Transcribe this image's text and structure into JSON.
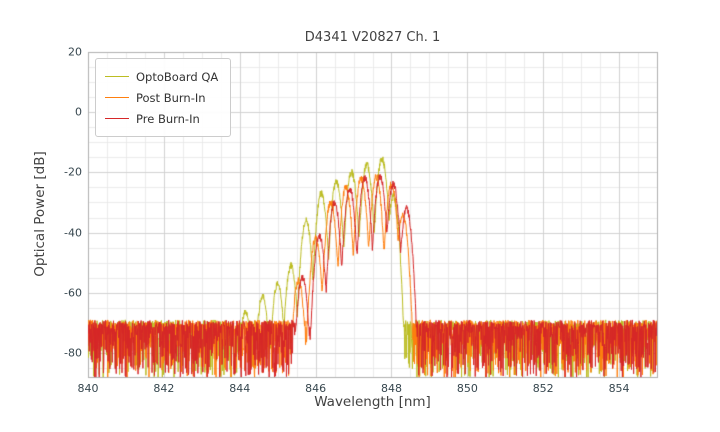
{
  "title": "D4341 V20827 Ch. 1",
  "chart_data": {
    "type": "line",
    "title": "D4341 V20827 Ch. 1",
    "xlabel": "Wavelength [nm]",
    "ylabel": "Optical Power [dB]",
    "xlim": [
      840,
      855
    ],
    "ylim": [
      -88,
      20
    ],
    "xticks": [
      840,
      842,
      844,
      846,
      848,
      850,
      852,
      854
    ],
    "yticks": [
      20,
      0,
      -20,
      -40,
      -60,
      -80
    ],
    "x_minor_step": 0.5,
    "y_minor_step": 5,
    "grid": true,
    "legend_position": "upper-left",
    "series": [
      {
        "name": "OptoBoard QA",
        "color": "#bcbd22",
        "seed": 11,
        "noise_floor": {
          "top": -69,
          "jitter": 2.5,
          "spike": 18
        },
        "signal": {
          "start": 844.1,
          "end": 848.25,
          "mode_halfwidth": 0.2,
          "valley_depth": 24,
          "signal_noise": 2.4,
          "modes": [
            [
              844.15,
              -66
            ],
            [
              844.6,
              -61
            ],
            [
              845.0,
              -57
            ],
            [
              845.35,
              -51
            ],
            [
              845.75,
              -36
            ],
            [
              846.15,
              -27
            ],
            [
              846.55,
              -23
            ],
            [
              846.95,
              -20
            ],
            [
              847.35,
              -17.5
            ],
            [
              847.75,
              -15.5
            ],
            [
              848.05,
              -28
            ]
          ]
        }
      },
      {
        "name": "Post Burn-In",
        "color": "#ff7f0e",
        "seed": 22,
        "noise_floor": {
          "top": -69,
          "jitter": 2.5,
          "spike": 18
        },
        "signal": {
          "start": 845.5,
          "end": 848.5,
          "mode_halfwidth": 0.2,
          "valley_depth": 24,
          "signal_noise": 2.4,
          "modes": [
            [
              845.55,
              -56
            ],
            [
              846.0,
              -42
            ],
            [
              846.4,
              -30
            ],
            [
              846.8,
              -25
            ],
            [
              847.2,
              -22
            ],
            [
              847.6,
              -21.5
            ],
            [
              848.0,
              -24
            ],
            [
              848.3,
              -34
            ]
          ]
        }
      },
      {
        "name": "Pre Burn-In",
        "color": "#d62728",
        "seed": 33,
        "noise_floor": {
          "top": -69,
          "jitter": 2.5,
          "spike": 18
        },
        "signal": {
          "start": 845.6,
          "end": 848.55,
          "mode_halfwidth": 0.2,
          "valley_depth": 24,
          "signal_noise": 2.4,
          "modes": [
            [
              845.65,
              -55
            ],
            [
              846.1,
              -41
            ],
            [
              846.5,
              -30
            ],
            [
              846.9,
              -25.5
            ],
            [
              847.3,
              -22
            ],
            [
              847.7,
              -21.5
            ],
            [
              848.05,
              -24
            ],
            [
              848.4,
              -32
            ]
          ]
        }
      }
    ]
  }
}
